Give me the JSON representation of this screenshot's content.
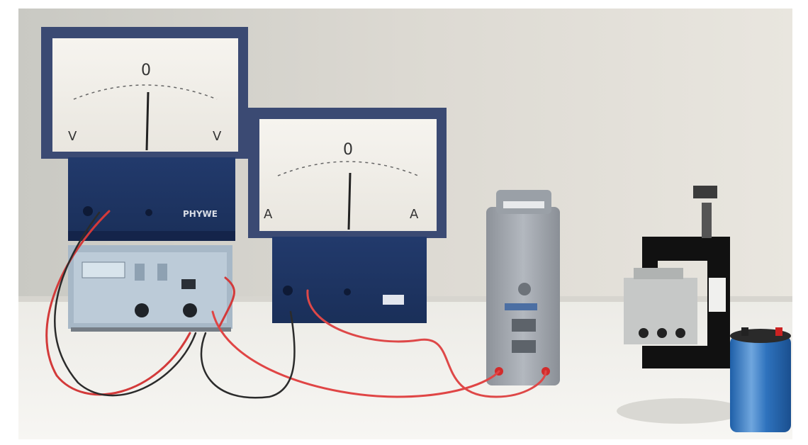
{
  "scene": {
    "voltmeter": {
      "zero_label": "0",
      "unit_left": "V",
      "unit_right": "V",
      "brand": "PHYWE"
    },
    "ammeter": {
      "zero_label": "0",
      "unit_left": "A",
      "unit_right": "A"
    }
  }
}
